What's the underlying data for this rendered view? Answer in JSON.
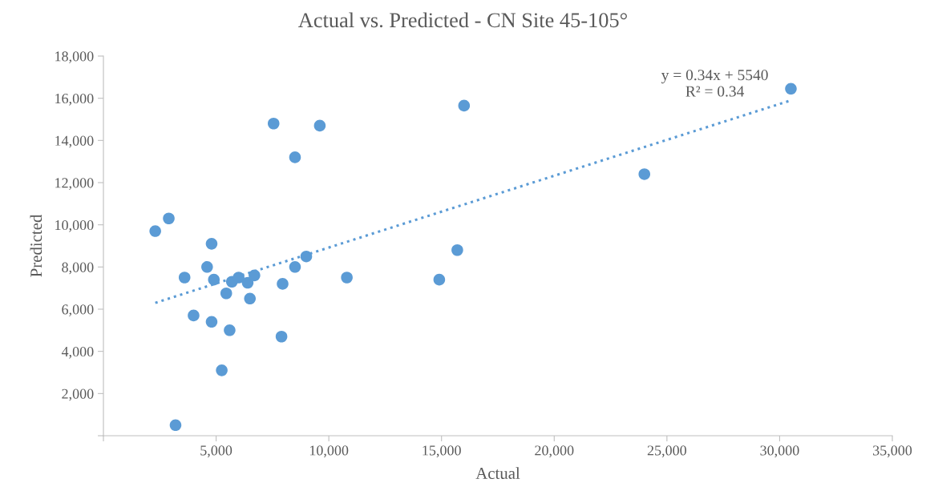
{
  "chart_data": {
    "type": "scatter",
    "title": "Actual vs. Predicted - CN Site 45-105°",
    "xlabel": "Actual",
    "ylabel": "Predicted",
    "xlim": [
      0,
      35000
    ],
    "xticks": [
      {
        "value": 0,
        "label": null
      },
      {
        "value": 5000,
        "label": "5,000"
      },
      {
        "value": 10000,
        "label": "10,000"
      },
      {
        "value": 15000,
        "label": "15,000"
      },
      {
        "value": 20000,
        "label": "20,000"
      },
      {
        "value": 25000,
        "label": "25,000"
      },
      {
        "value": 30000,
        "label": "30,000"
      },
      {
        "value": 35000,
        "label": "35,000"
      }
    ],
    "ylim": [
      0,
      18000
    ],
    "yticks": [
      {
        "value": 0,
        "label": null
      },
      {
        "value": 2000,
        "label": "2,000"
      },
      {
        "value": 4000,
        "label": "4,000"
      },
      {
        "value": 6000,
        "label": "6,000"
      },
      {
        "value": 8000,
        "label": "8,000"
      },
      {
        "value": 10000,
        "label": "10,000"
      },
      {
        "value": 12000,
        "label": "12,000"
      },
      {
        "value": 14000,
        "label": "14,000"
      },
      {
        "value": 16000,
        "label": "16,000"
      },
      {
        "value": 18000,
        "label": "18,000"
      }
    ],
    "grid": false,
    "marker": "circle",
    "series": [
      {
        "color": "#5b9bd5",
        "x": [
          7550,
          9600,
          8500,
          2900,
          2300,
          4800,
          4600,
          3600,
          4900,
          5700,
          6000,
          6400,
          6700,
          9000,
          8500,
          7950,
          10800,
          5450,
          6500,
          4000,
          4800,
          5600,
          7900,
          5250,
          3200,
          16000,
          15700,
          14900,
          24000,
          30500
        ],
        "values": [
          14800,
          14700,
          13200,
          10300,
          9700,
          9100,
          8000,
          7500,
          7400,
          7300,
          7500,
          7250,
          7600,
          8500,
          8000,
          7200,
          7500,
          6750,
          6500,
          5700,
          5400,
          5000,
          4700,
          3100,
          500,
          15650,
          8800,
          7400,
          12400,
          16450
        ]
      },
      {
        "type": "line",
        "color": "#5b9bd5",
        "line_style": "dotted",
        "marker": "none",
        "x": [
          2300,
          30500
        ],
        "values": [
          6300,
          15900
        ]
      }
    ],
    "annotations": [
      "y = 0.34x + 5540\nR² = 0.34"
    ]
  }
}
